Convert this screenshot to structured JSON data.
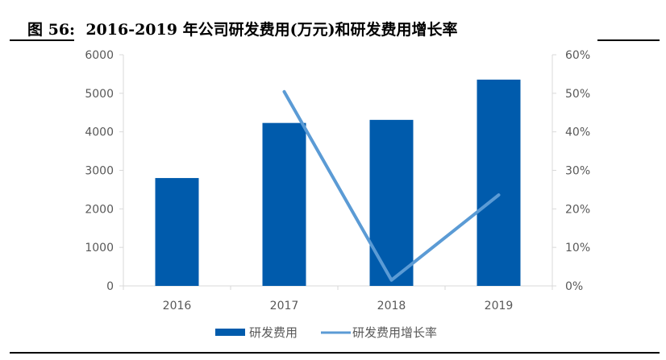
{
  "figure": {
    "label": "图 56:",
    "title": "2016-2019 年公司研发费用(万元)和研发费用增长率"
  },
  "colors": {
    "bar": "#005BAC",
    "line": "#5B9BD5",
    "axis": "#D9D9D9",
    "tick_text": "#595959"
  },
  "legend": {
    "bar_label": "研发费用",
    "line_label": "研发费用增长率"
  },
  "axes": {
    "left_ticks": [
      "0",
      "1000",
      "2000",
      "3000",
      "4000",
      "5000",
      "6000"
    ],
    "right_ticks": [
      "0%",
      "10%",
      "20%",
      "30%",
      "40%",
      "50%",
      "60%"
    ],
    "categories": [
      "2016",
      "2017",
      "2018",
      "2019"
    ]
  },
  "chart_data": {
    "type": "bar+line",
    "title": "2016-2019 年公司研发费用(万元)和研发费用增长率",
    "categories": [
      "2016",
      "2017",
      "2018",
      "2019"
    ],
    "series": [
      {
        "name": "研发费用",
        "type": "bar",
        "axis": "left",
        "values": [
          2800,
          4230,
          4310,
          5355
        ]
      },
      {
        "name": "研发费用增长率",
        "type": "line",
        "axis": "right",
        "values": [
          null,
          0.504,
          0.015,
          0.236
        ]
      }
    ],
    "xlabel": "",
    "ylabel_left": "",
    "ylabel_right": "",
    "ylim_left": [
      0,
      6000
    ],
    "ylim_right": [
      0,
      0.6
    ],
    "yticks_left": [
      0,
      1000,
      2000,
      3000,
      4000,
      5000,
      6000
    ],
    "yticks_right": [
      "0%",
      "10%",
      "20%",
      "30%",
      "40%",
      "50%",
      "60%"
    ],
    "grid": false,
    "legend_position": "bottom"
  }
}
